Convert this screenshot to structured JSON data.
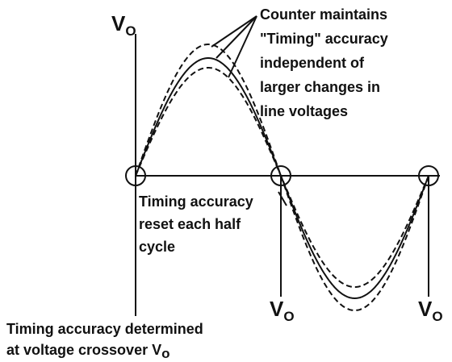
{
  "labels": {
    "vo_top": {
      "main": "V",
      "sub": "O"
    },
    "vo_mid": {
      "main": "V",
      "sub": "O"
    },
    "vo_right": {
      "main": "V",
      "sub": "O"
    }
  },
  "annotations": {
    "counter": [
      "Counter maintains",
      "\"Timing\" accuracy",
      "independent of",
      "larger changes in",
      "line voltages"
    ],
    "reset": [
      "Timing accuracy",
      "reset each half",
      "cycle"
    ],
    "determined": {
      "line1": "Timing accuracy determined",
      "line2": "at voltage crossover V",
      "sub": "o"
    }
  }
}
